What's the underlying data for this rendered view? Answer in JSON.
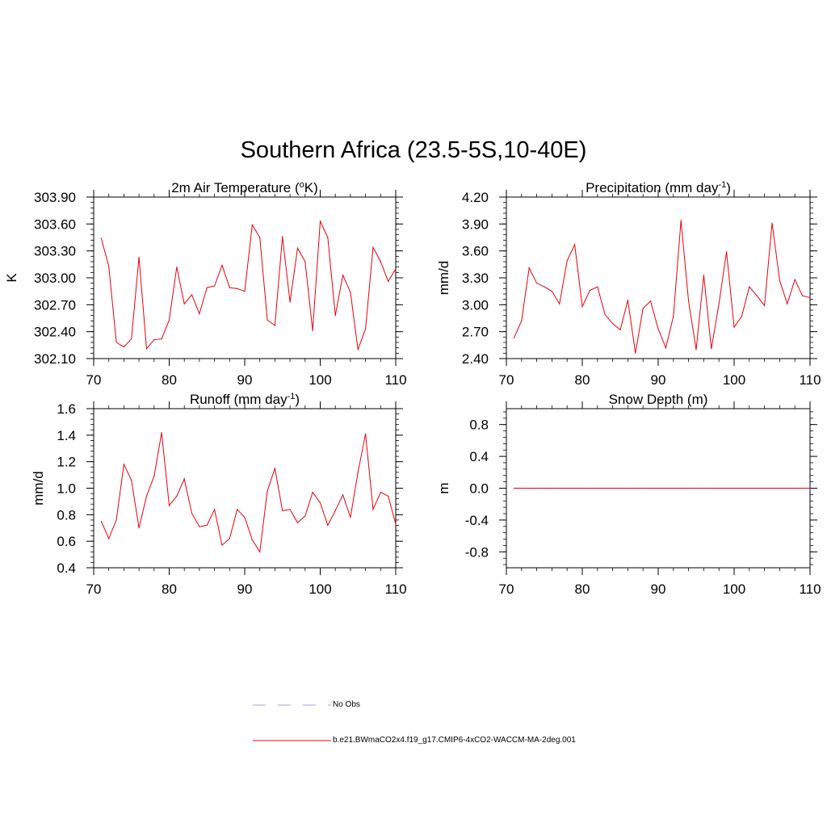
{
  "main_title": "Southern Africa (23.5-5S,10-40E)",
  "colors": {
    "line": "#e8000b",
    "obs": "#b8b8e8",
    "axis": "#000000"
  },
  "legend": {
    "obs_label": "No Obs",
    "model_label": "b.e21.BWmaCO2x4.f19_g17.CMIP6-4xCO2-WACCM-MA-2deg.001"
  },
  "chart_data": [
    {
      "type": "line",
      "title": "2m Air Temperature (",
      "title_sup": "o",
      "title_tail": "K)",
      "ylabel": "K",
      "xlabel": "",
      "xlim": [
        70,
        110
      ],
      "ylim": [
        302.1,
        303.9
      ],
      "xticks": [
        70,
        80,
        90,
        100,
        110
      ],
      "xtick_labels": [
        "70",
        "80",
        "90",
        "100",
        "110"
      ],
      "yticks": [
        302.1,
        302.4,
        302.7,
        303.0,
        303.3,
        303.6,
        303.9
      ],
      "ytick_labels": [
        "302.10",
        "302.40",
        "302.70",
        "303.00",
        "303.30",
        "303.60",
        "303.90"
      ],
      "x": [
        71,
        72,
        73,
        74,
        75,
        76,
        77,
        78,
        79,
        80,
        81,
        82,
        83,
        84,
        85,
        86,
        87,
        88,
        89,
        90,
        91,
        92,
        93,
        94,
        95,
        96,
        97,
        98,
        99,
        100,
        101,
        102,
        103,
        104,
        105,
        106,
        107,
        108,
        109,
        110
      ],
      "series": [
        {
          "name": "b.e21.BWmaCO2x4.f19_g17.CMIP6-4xCO2-WACCM-MA-2deg.001",
          "values": [
            303.44,
            303.13,
            302.28,
            302.23,
            302.32,
            303.23,
            302.21,
            302.31,
            302.32,
            302.53,
            303.12,
            302.71,
            302.81,
            302.6,
            302.89,
            302.91,
            303.14,
            302.89,
            302.88,
            302.85,
            303.59,
            303.45,
            302.53,
            302.47,
            303.46,
            302.73,
            303.33,
            303.18,
            302.41,
            303.63,
            303.45,
            302.58,
            303.03,
            302.84,
            302.2,
            302.43,
            303.34,
            303.18,
            302.96,
            303.1
          ]
        }
      ]
    },
    {
      "type": "line",
      "title": "Precipitation (mm day",
      "title_sup": "-1",
      "title_tail": ")",
      "ylabel": "mm/d",
      "xlabel": "",
      "xlim": [
        70,
        110
      ],
      "ylim": [
        2.4,
        4.2
      ],
      "xticks": [
        70,
        80,
        90,
        100,
        110
      ],
      "xtick_labels": [
        "70",
        "80",
        "90",
        "100",
        "110"
      ],
      "yticks": [
        2.4,
        2.7,
        3.0,
        3.3,
        3.6,
        3.9,
        4.2
      ],
      "ytick_labels": [
        "2.40",
        "2.70",
        "3.00",
        "3.30",
        "3.60",
        "3.90",
        "4.20"
      ],
      "x": [
        71,
        72,
        73,
        74,
        75,
        76,
        77,
        78,
        79,
        80,
        81,
        82,
        83,
        84,
        85,
        86,
        87,
        88,
        89,
        90,
        91,
        92,
        93,
        94,
        95,
        96,
        97,
        98,
        99,
        100,
        101,
        102,
        103,
        104,
        105,
        106,
        107,
        108,
        109,
        110
      ],
      "series": [
        {
          "name": "b.e21.BWmaCO2x4.f19_g17.CMIP6-4xCO2-WACCM-MA-2deg.001",
          "values": [
            2.63,
            2.82,
            3.41,
            3.24,
            3.2,
            3.15,
            3.01,
            3.49,
            3.67,
            2.98,
            3.16,
            3.2,
            2.89,
            2.79,
            2.72,
            3.05,
            2.46,
            2.96,
            3.04,
            2.73,
            2.52,
            2.87,
            3.94,
            3.04,
            2.5,
            3.33,
            2.51,
            3.01,
            3.59,
            2.75,
            2.87,
            3.2,
            3.1,
            2.99,
            3.91,
            3.27,
            3.01,
            3.28,
            3.1,
            3.08
          ]
        }
      ]
    },
    {
      "type": "line",
      "title": "Runoff (mm day",
      "title_sup": "-1",
      "title_tail": ")",
      "ylabel": "mm/d",
      "xlabel": "",
      "xlim": [
        70,
        110
      ],
      "ylim": [
        0.4,
        1.6
      ],
      "xticks": [
        70,
        80,
        90,
        100,
        110
      ],
      "xtick_labels": [
        "70",
        "80",
        "90",
        "100",
        "110"
      ],
      "yticks": [
        0.4,
        0.6,
        0.8,
        1.0,
        1.2,
        1.4,
        1.6
      ],
      "ytick_labels": [
        "0.4",
        "0.6",
        "0.8",
        "1.0",
        "1.2",
        "1.4",
        "1.6"
      ],
      "x": [
        71,
        72,
        73,
        74,
        75,
        76,
        77,
        78,
        79,
        80,
        81,
        82,
        83,
        84,
        85,
        86,
        87,
        88,
        89,
        90,
        91,
        92,
        93,
        94,
        95,
        96,
        97,
        98,
        99,
        100,
        101,
        102,
        103,
        104,
        105,
        106,
        107,
        108,
        109,
        110
      ],
      "series": [
        {
          "name": "b.e21.BWmaCO2x4.f19_g17.CMIP6-4xCO2-WACCM-MA-2deg.001",
          "values": [
            0.75,
            0.62,
            0.76,
            1.18,
            1.06,
            0.7,
            0.94,
            1.09,
            1.42,
            0.87,
            0.94,
            1.07,
            0.81,
            0.71,
            0.72,
            0.84,
            0.57,
            0.62,
            0.84,
            0.78,
            0.61,
            0.52,
            0.98,
            1.15,
            0.83,
            0.84,
            0.74,
            0.79,
            0.97,
            0.89,
            0.72,
            0.83,
            0.95,
            0.78,
            1.12,
            1.41,
            0.84,
            0.97,
            0.94,
            0.73
          ]
        }
      ]
    },
    {
      "type": "line",
      "title": "Snow Depth (m)",
      "title_sup": "",
      "title_tail": "",
      "ylabel": "m",
      "xlabel": "",
      "xlim": [
        70,
        110
      ],
      "ylim": [
        -1.0,
        1.0
      ],
      "xticks": [
        70,
        80,
        90,
        100,
        110
      ],
      "xtick_labels": [
        "70",
        "80",
        "90",
        "100",
        "110"
      ],
      "yticks": [
        -0.8,
        -0.4,
        0.0,
        0.4,
        0.8
      ],
      "ytick_labels": [
        "-0.8",
        "-0.4",
        "0.0",
        "0.4",
        "0.8"
      ],
      "x": [
        71,
        72,
        73,
        74,
        75,
        76,
        77,
        78,
        79,
        80,
        81,
        82,
        83,
        84,
        85,
        86,
        87,
        88,
        89,
        90,
        91,
        92,
        93,
        94,
        95,
        96,
        97,
        98,
        99,
        100,
        101,
        102,
        103,
        104,
        105,
        106,
        107,
        108,
        109,
        110
      ],
      "series": [
        {
          "name": "b.e21.BWmaCO2x4.f19_g17.CMIP6-4xCO2-WACCM-MA-2deg.001",
          "values": [
            0,
            0,
            0,
            0,
            0,
            0,
            0,
            0,
            0,
            0,
            0,
            0,
            0,
            0,
            0,
            0,
            0,
            0,
            0,
            0,
            0,
            0,
            0,
            0,
            0,
            0,
            0,
            0,
            0,
            0,
            0,
            0,
            0,
            0,
            0,
            0,
            0,
            0,
            0,
            0
          ]
        }
      ]
    }
  ]
}
